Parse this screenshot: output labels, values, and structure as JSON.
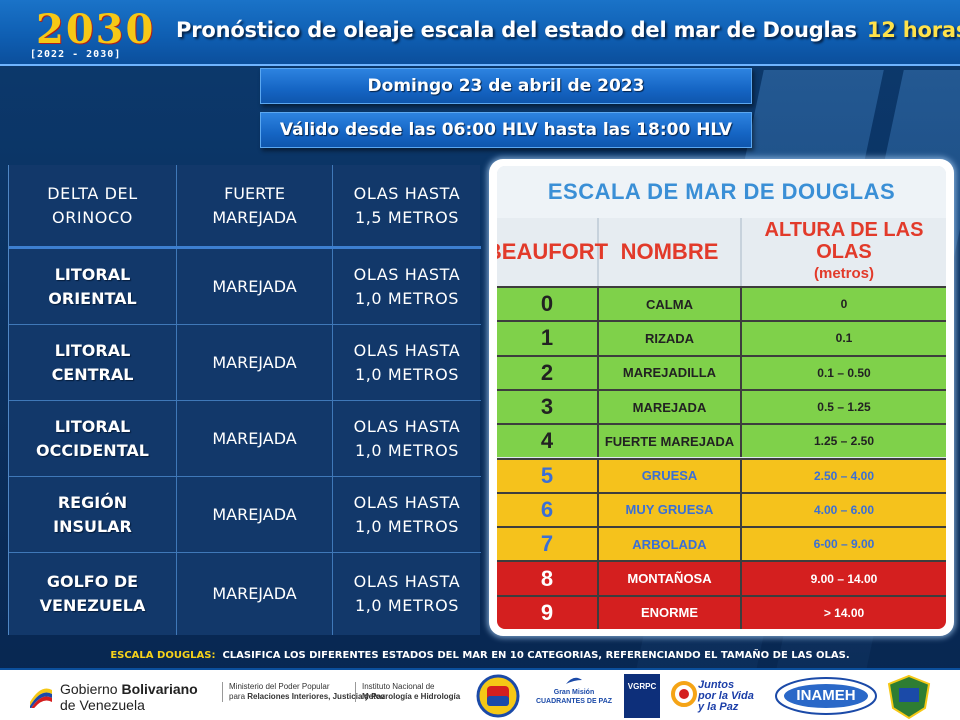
{
  "header": {
    "logo_main": "2030",
    "logo_sub": "[2022 - 2030]",
    "title": "Pronóstico de oleaje escala del estado del mar de Douglas",
    "hours": "12 horas"
  },
  "date_banner": "Domingo 23 de abril de 2023",
  "valid_banner": "Válido desde las 06:00 HLV hasta las 18:00 HLV",
  "forecast": [
    {
      "region_l1": "DELTA DEL",
      "region_l2": "ORINOCO",
      "state_l1": "FUERTE",
      "state_l2": "MAREJADA",
      "waves_l1": "OLAS HASTA",
      "waves_l2": "1,5 METROS"
    },
    {
      "region_l1": "LITORAL",
      "region_l2": "ORIENTAL",
      "state_l1": "MAREJADA",
      "state_l2": "",
      "waves_l1": "OLAS HASTA",
      "waves_l2": "1,0 METROS"
    },
    {
      "region_l1": "LITORAL",
      "region_l2": "CENTRAL",
      "state_l1": "MAREJADA",
      "state_l2": "",
      "waves_l1": "OLAS HASTA",
      "waves_l2": "1,0 METROS"
    },
    {
      "region_l1": "LITORAL",
      "region_l2": "OCCIDENTAL",
      "state_l1": "MAREJADA",
      "state_l2": "",
      "waves_l1": "OLAS HASTA",
      "waves_l2": "1,0 METROS"
    },
    {
      "region_l1": "REGIÓN",
      "region_l2": "INSULAR",
      "state_l1": "MAREJADA",
      "state_l2": "",
      "waves_l1": "OLAS HASTA",
      "waves_l2": "1,0 METROS"
    },
    {
      "region_l1": "GOLFO DE",
      "region_l2": "VENEZUELA",
      "state_l1": "MAREJADA",
      "state_l2": "",
      "waves_l1": "OLAS HASTA",
      "waves_l2": "1,0 METROS"
    }
  ],
  "scale": {
    "title": "ESCALA  DE MAR DE DOUGLAS",
    "col_beaufort": "BEAUFORT",
    "col_nombre": "NOMBRE",
    "col_altura": "ALTURA DE LAS OLAS",
    "col_unit": "(metros)",
    "rows": [
      {
        "level": "0",
        "name": "CALMA",
        "height": "0",
        "color": "#7fd14a"
      },
      {
        "level": "1",
        "name": "RIZADA",
        "height": "0.1",
        "color": "#7fd14a"
      },
      {
        "level": "2",
        "name": "MAREJADILLA",
        "height": "0.1 – 0.50",
        "color": "#7fd14a"
      },
      {
        "level": "3",
        "name": "MAREJADA",
        "height": "0.5 – 1.25",
        "color": "#7fd14a"
      },
      {
        "level": "4",
        "name": "FUERTE MAREJADA",
        "height": "1.25 – 2.50",
        "color": "#7fd14a"
      },
      {
        "level": "5",
        "name": "GRUESA",
        "height": "2.50 – 4.00",
        "color": "#f5c21c"
      },
      {
        "level": "6",
        "name": "MUY GRUESA",
        "height": "4.00 – 6.00",
        "color": "#f5c21c"
      },
      {
        "level": "7",
        "name": "ARBOLADA",
        "height": "6-00 – 9.00",
        "color": "#f5c21c"
      },
      {
        "level": "8",
        "name": "MONTAÑOSA",
        "height": "9.00 – 14.00",
        "color": "#d41f1f"
      },
      {
        "level": "9",
        "name": "ENORME",
        "height": "> 14.00",
        "color": "#d41f1f"
      }
    ]
  },
  "footnote": {
    "label": "ESCALA DOUGLAS:",
    "text": "CLASIFICA LOS DIFERENTES  ESTADOS  DEL  MAR  EN  10  CATEGORIAS,  REFERENCIANDO   EL TAMAÑO  DE  LAS OLAS."
  },
  "footer": {
    "gob_t1a": "Gobierno ",
    "gob_t1b": "Bolivariano",
    "gob_t2": "de Venezuela",
    "min_l1": "Ministerio del Poder Popular",
    "min_l2a": "para ",
    "min_l2b": "Relaciones Interiores, Justicia y Paz",
    "inst_l1": "Instituto Nacional de",
    "inst_l2": "Meteorología e Hidrología",
    "cuad_l1": "Gran Misión",
    "cuad_l2": "CUADRANTES DE PAZ",
    "vgrpc": "VGRPC",
    "juntos_l1": "Juntos",
    "juntos_l2": "por la Vida",
    "juntos_l3": "y la Paz",
    "inameh": "INAMEH"
  }
}
